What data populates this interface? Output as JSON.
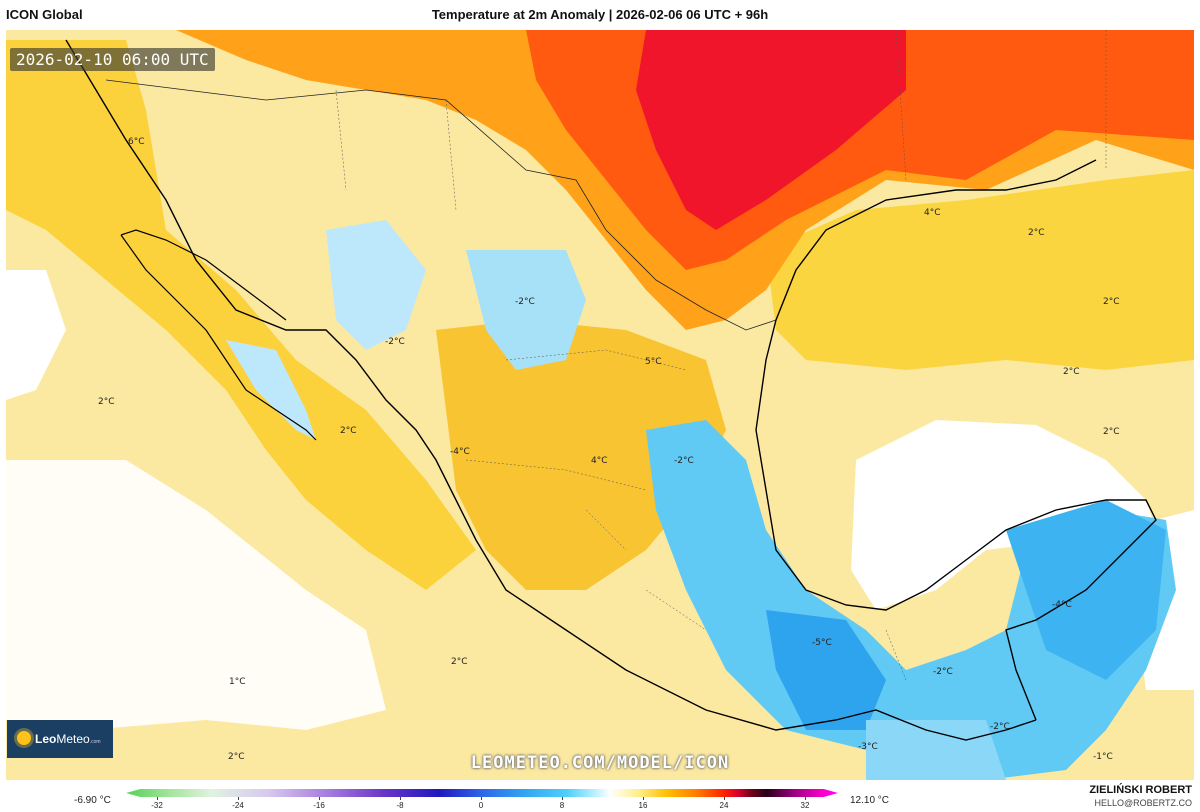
{
  "header": {
    "model": "ICON Global",
    "title": "Temperature at 2m Anomaly | 2026-02-06 06 UTC + 96h"
  },
  "map": {
    "valid_time": "2026-02-10 06:00 UTC",
    "labels": [
      "6°C",
      "4°C",
      "2°C",
      "-2°C",
      "-2°C",
      "5°C",
      "2°C",
      "2°C",
      "2°C",
      "-4°C",
      "4°C",
      "-2°C",
      "2°C",
      "2°C",
      "1°C",
      "2°C",
      "-4°C",
      "-5°C",
      "-2°C",
      "-3°C",
      "-2°C",
      "-1°C",
      "2°C"
    ]
  },
  "watermark": "LEOMETEO.COM/MODEL/ICON",
  "logo": {
    "bold": "Leo",
    "rest": "Meteo",
    "suffix": ".com"
  },
  "colorbar": {
    "min_label": "-6.90 °C",
    "max_label": "12.10 °C",
    "ticks": [
      "-32",
      "-24",
      "-16",
      "-8",
      "0",
      "8",
      "16",
      "24",
      "32"
    ]
  },
  "credit": {
    "author": "ZIELIŃSKI ROBERT",
    "email": "HELLO@ROBERTZ.CO"
  },
  "colors": {
    "warm": "#ff3b10",
    "cold": "#3cc3f5",
    "neutral": "#ffffff",
    "mild": "#fbe9a2"
  }
}
